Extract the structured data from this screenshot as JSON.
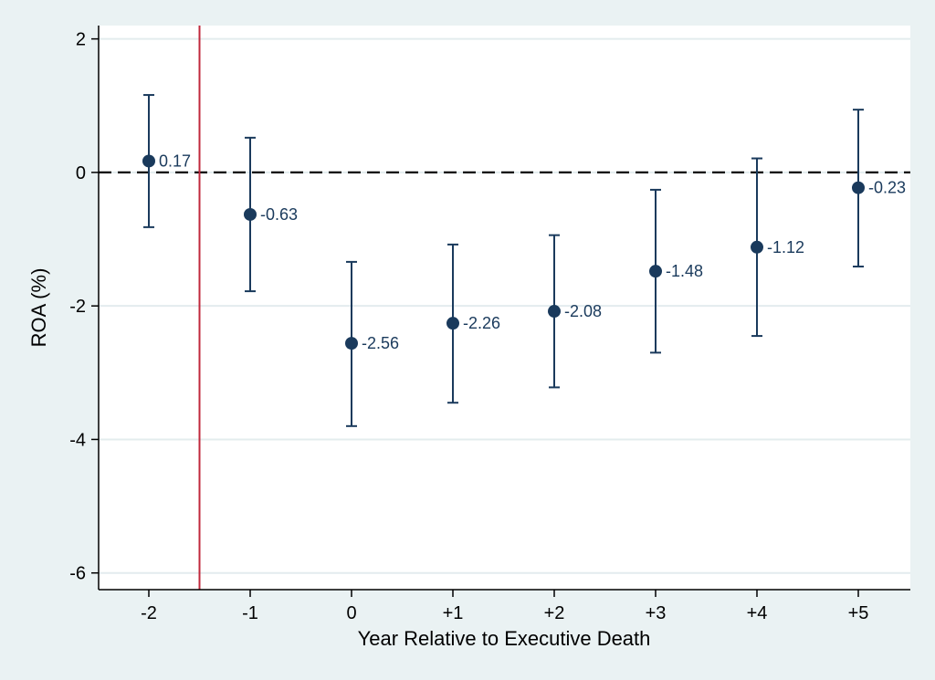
{
  "chart_data": {
    "type": "scatter",
    "title": "",
    "xlabel": "Year Relative to Executive Death",
    "ylabel": "ROA (%)",
    "categories": [
      "-2",
      "-1",
      "0",
      "+1",
      "+2",
      "+3",
      "+4",
      "+5"
    ],
    "values": [
      0.17,
      -0.63,
      -2.56,
      -2.26,
      -2.08,
      -1.48,
      -1.12,
      -0.23
    ],
    "ci_lower": [
      -0.82,
      -1.78,
      -3.8,
      -3.45,
      -3.22,
      -2.7,
      -2.45,
      -1.41
    ],
    "ci_upper": [
      1.16,
      0.52,
      -1.34,
      -1.08,
      -0.94,
      -0.26,
      0.21,
      0.94
    ],
    "data_labels": [
      "0.17",
      "-0.63",
      "-2.56",
      "-2.26",
      "-2.08",
      "-1.48",
      "-1.12",
      "-0.23"
    ],
    "yticks": [
      2,
      0,
      -2,
      -4,
      -6
    ],
    "ytick_labels": [
      "2",
      "0",
      "-2",
      "-4",
      "-6"
    ],
    "ylim": [
      -6.25,
      2.2
    ],
    "xlim": [
      -0.5,
      7.5
    ],
    "reference_line_y": 0,
    "event_line_x": -0.5,
    "grid": true,
    "colors": {
      "marker": "#1a3a5c",
      "event_line": "#c0283c",
      "reference_line": "#000000",
      "grid": "#e3ecee",
      "background": "#eaf2f3",
      "plot_background": "#ffffff"
    }
  }
}
